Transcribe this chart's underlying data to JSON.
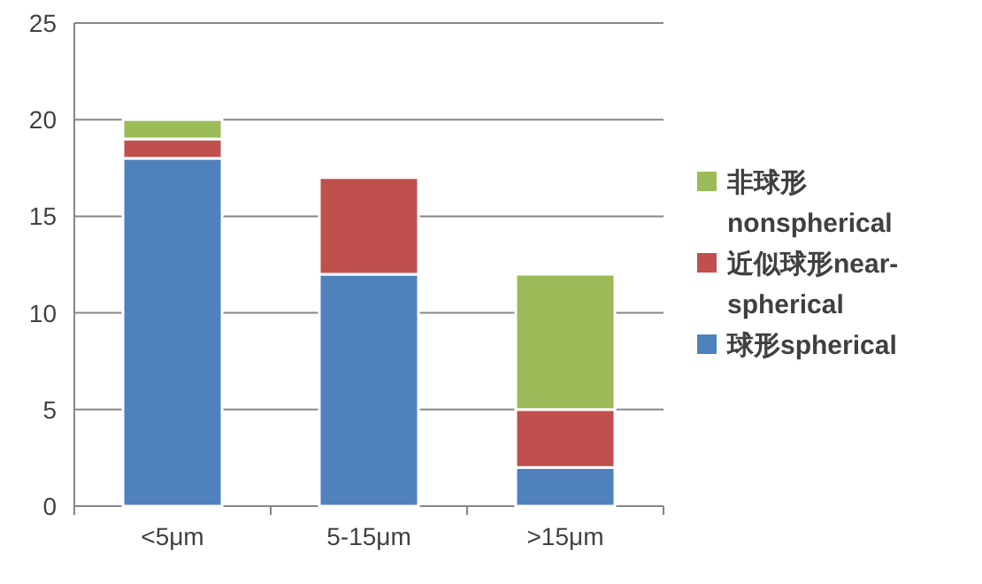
{
  "chart_data": {
    "type": "bar",
    "stacked": true,
    "categories": [
      "<5μm",
      "5-15μm",
      ">15μm"
    ],
    "series": [
      {
        "name": "球形spherical",
        "color": "#4f81bd",
        "values": [
          18,
          12,
          2
        ]
      },
      {
        "name": "近似球形near-spherical",
        "color": "#c0504d",
        "values": [
          1,
          5,
          3
        ]
      },
      {
        "name": "非球形nonspherical",
        "color": "#9bbb59",
        "values": [
          1,
          0,
          7
        ]
      }
    ],
    "ylim": [
      0,
      25
    ],
    "yticks": [
      0,
      5,
      10,
      15,
      20,
      25
    ],
    "grid": "y",
    "legend": "right"
  }
}
